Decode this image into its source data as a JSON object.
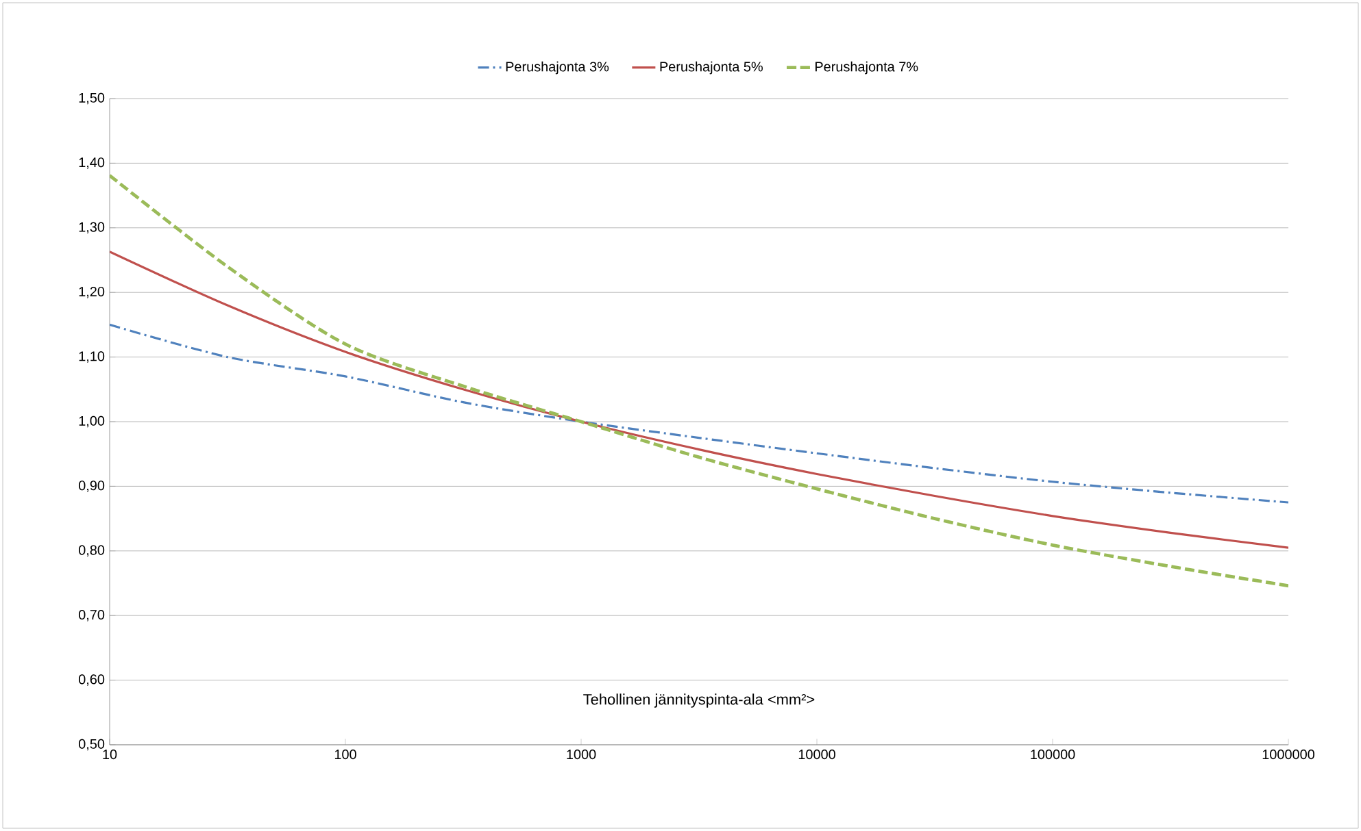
{
  "chart_data": {
    "type": "line",
    "xlabel": "Tehollinen jännityspinta-ala <mm²>",
    "log": "x",
    "grid": "y",
    "legend": "top",
    "marker": "none",
    "x": [
      10,
      31.6,
      100,
      316,
      1000,
      3162,
      10000,
      31623,
      100000,
      316228,
      1000000
    ],
    "xlim": [
      10,
      1000000
    ],
    "xticks": [
      10,
      100,
      1000,
      10000,
      100000,
      1000000
    ],
    "ylim": [
      0.5,
      1.5
    ],
    "yticks": [
      {
        "value": 0.5,
        "label": "0,50"
      },
      {
        "value": 0.6,
        "label": "0,60"
      },
      {
        "value": 0.7,
        "label": "0,70"
      },
      {
        "value": 0.8,
        "label": "0,80"
      },
      {
        "value": 0.9,
        "label": "0,90"
      },
      {
        "value": 1.0,
        "label": "1,00"
      },
      {
        "value": 1.1,
        "label": "1,10"
      },
      {
        "value": 1.2,
        "label": "1,20"
      },
      {
        "value": 1.3,
        "label": "1,30"
      },
      {
        "value": 1.4,
        "label": "1,40"
      },
      {
        "value": 1.5,
        "label": "1,50"
      }
    ],
    "series": [
      {
        "name": "Perushajonta 3%",
        "color": "#4f81bd",
        "line_style": "dashdot",
        "values": [
          1.15,
          1.1,
          1.07,
          1.03,
          1.0,
          0.975,
          0.951,
          0.928,
          0.907,
          0.89,
          0.875
        ]
      },
      {
        "name": "Perushajonta 5%",
        "color": "#c0504d",
        "line_style": "solid",
        "values": [
          1.263,
          1.18,
          1.108,
          1.05,
          1.0,
          0.957,
          0.919,
          0.885,
          0.854,
          0.828,
          0.805
        ]
      },
      {
        "name": "Perushajonta 7%",
        "color": "#9bbb59",
        "line_style": "dashed",
        "values": [
          1.381,
          1.24,
          1.12,
          1.055,
          1.0,
          0.945,
          0.896,
          0.85,
          0.809,
          0.776,
          0.746
        ]
      }
    ]
  }
}
